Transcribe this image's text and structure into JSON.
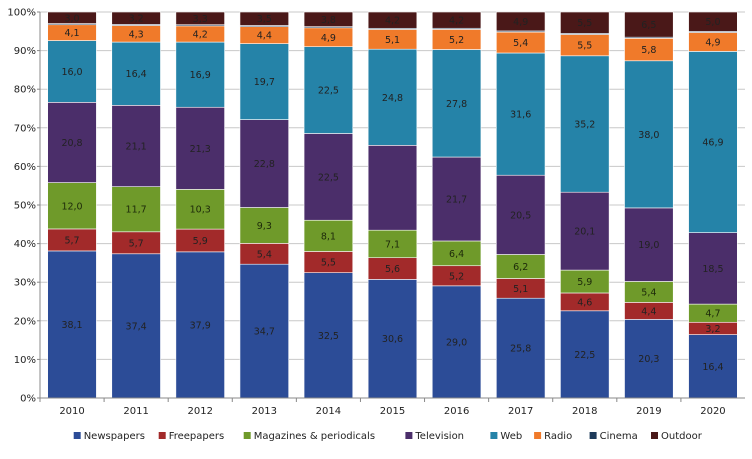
{
  "chart_data": {
    "type": "bar",
    "stacked": "percent",
    "categories": [
      "2010",
      "2011",
      "2012",
      "2013",
      "2014",
      "2015",
      "2016",
      "2017",
      "2018",
      "2019",
      "2020"
    ],
    "series": [
      {
        "name": "Newspapers",
        "color": "#2c4c97",
        "values": [
          38.1,
          37.4,
          37.9,
          34.7,
          32.5,
          30.6,
          29.0,
          25.8,
          22.5,
          20.3,
          16.4
        ],
        "labels": [
          "38,1",
          "37,4",
          "37,9",
          "34,7",
          "32,5",
          "30,6",
          "29,0",
          "25,8",
          "22,5",
          "20,3",
          "16,4"
        ]
      },
      {
        "name": "Freepapers",
        "color": "#a22a2a",
        "values": [
          5.7,
          5.7,
          5.9,
          5.4,
          5.5,
          5.6,
          5.2,
          5.1,
          4.6,
          4.4,
          3.2
        ],
        "labels": [
          "5,7",
          "5,7",
          "5,9",
          "5,4",
          "5,5",
          "5,6",
          "5,2",
          "5,1",
          "4,6",
          "4,4",
          "3,2"
        ]
      },
      {
        "name": "Magazines & periodicals",
        "color": "#6f9a2a",
        "values": [
          12.0,
          11.7,
          10.3,
          9.3,
          8.1,
          7.1,
          6.4,
          6.2,
          5.9,
          5.4,
          4.7
        ],
        "labels": [
          "12,0",
          "11,7",
          "10,3",
          "9,3",
          "8,1",
          "7,1",
          "6,4",
          "6,2",
          "5,9",
          "5,4",
          "4,7"
        ]
      },
      {
        "name": "Television",
        "color": "#4b2e6a",
        "values": [
          20.8,
          21.1,
          21.3,
          22.8,
          22.5,
          21.9,
          21.7,
          20.5,
          20.1,
          19.0,
          18.5
        ],
        "labels": [
          "20,8",
          "21,1",
          "21,3",
          "22,8",
          "22,5",
          "",
          "21,7",
          "20,5",
          "20,1",
          "19,0",
          "18,5"
        ]
      },
      {
        "name": "Web",
        "color": "#2583a8",
        "values": [
          16.0,
          16.4,
          16.9,
          19.7,
          22.5,
          24.8,
          27.8,
          31.6,
          35.2,
          38.0,
          46.9
        ],
        "labels": [
          "16,0",
          "16,4",
          "16,9",
          "19,7",
          "22,5",
          "24,8",
          "27,8",
          "31,6",
          "35,2",
          "38,0",
          "46,9"
        ]
      },
      {
        "name": "Radio",
        "color": "#f07a2a",
        "values": [
          4.1,
          4.3,
          4.2,
          4.4,
          4.9,
          5.1,
          5.2,
          5.4,
          5.5,
          5.8,
          4.9
        ],
        "labels": [
          "4,1",
          "4,3",
          "4,2",
          "4,4",
          "4,9",
          "5,1",
          "5,2",
          "5,4",
          "5,5",
          "5,8",
          "4,9"
        ]
      },
      {
        "name": "Cinema",
        "color": "#1e3a5a",
        "values": [
          0.3,
          0.3,
          0.3,
          0.3,
          0.3,
          0.3,
          0.3,
          0.3,
          0.3,
          0.3,
          0.3
        ],
        "labels": [
          "",
          "",
          "",
          "",
          "",
          "",
          "",
          "",
          "",
          "",
          ""
        ]
      },
      {
        "name": "Outdoor",
        "color": "#4a1818",
        "values": [
          3.0,
          3.2,
          3.3,
          3.5,
          3.8,
          4.2,
          4.2,
          4.9,
          5.5,
          6.5,
          5.0
        ],
        "labels": [
          "3,0",
          "3,2",
          "3,3",
          "3,5",
          "3,8",
          "4,2",
          "4,2",
          "4,9",
          "5,5",
          "6,5",
          "5,0"
        ]
      }
    ],
    "ylim": [
      0,
      100
    ],
    "yticks": [
      0,
      10,
      20,
      30,
      40,
      50,
      60,
      70,
      80,
      90,
      100
    ],
    "yticklabels": [
      "0%",
      "10%",
      "20%",
      "30%",
      "40%",
      "50%",
      "60%",
      "70%",
      "80%",
      "90%",
      "100%"
    ],
    "grid": true,
    "legend": "bottom"
  }
}
